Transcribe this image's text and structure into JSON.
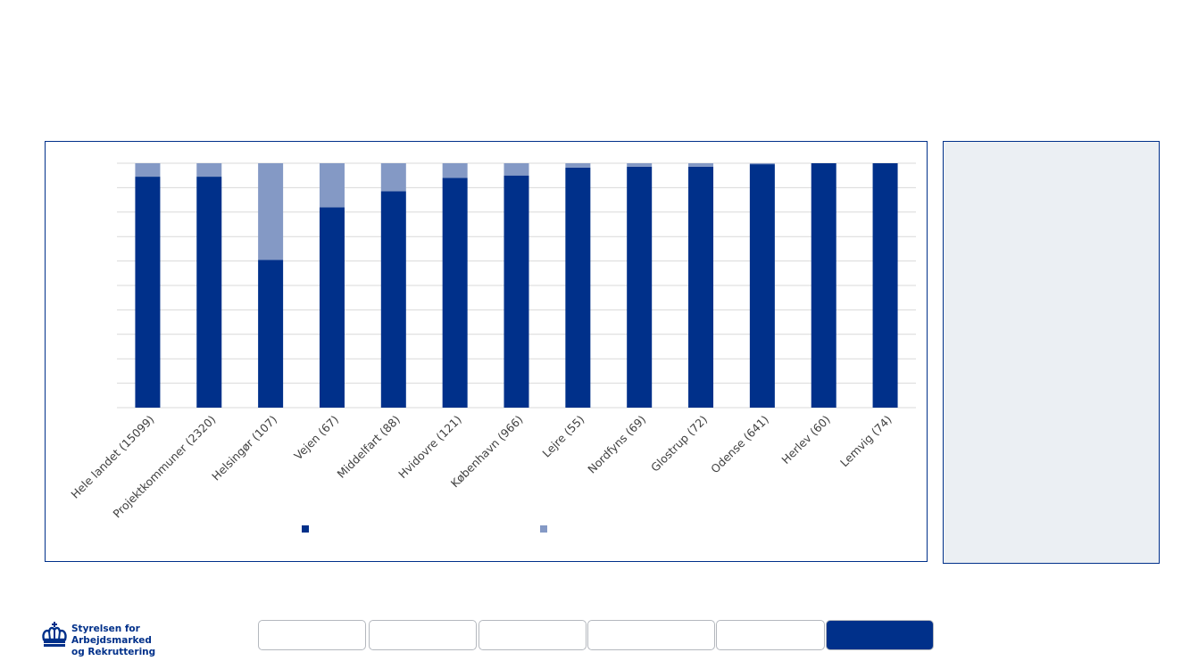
{
  "chart_data": {
    "type": "bar",
    "stacked": true,
    "categories": [
      "Hele landet (15099)",
      "Projektkommuner (2320)",
      "Helsingør (107)",
      "Vejen (67)",
      "Middelfart (88)",
      "Hvidovre (121)",
      "København (966)",
      "Lejre (55)",
      "Nordfyns (69)",
      "Glostrup (72)",
      "Odense (641)",
      "Herlev (60)",
      "Lemvig (74)"
    ],
    "series": [
      {
        "color": "#00308a",
        "values": [
          94.5,
          94.5,
          60.5,
          82,
          88.5,
          94,
          95,
          98.2,
          98.6,
          98.6,
          99.6,
          100,
          100
        ]
      },
      {
        "color": "#8499c5",
        "values": [
          5.5,
          5.5,
          39.5,
          18,
          11.5,
          6,
          5,
          1.8,
          1.4,
          1.4,
          0.4,
          0,
          0
        ]
      }
    ],
    "ylim": [
      0,
      100
    ],
    "grid": true,
    "legend": "bottom"
  },
  "colors": {
    "brand": "#00308a",
    "panel_border": "#00308a",
    "side_panel_bg": "#ebeff3",
    "grid": "#d9d9d9"
  },
  "footer": {
    "logo": {
      "icon": "crown-icon",
      "line1": "Styrelsen for Arbejdsmarked",
      "line2": "og Rekruttering"
    },
    "nav_buttons": [
      {
        "active": false
      },
      {
        "active": false
      },
      {
        "active": false
      },
      {
        "active": false
      },
      {
        "active": false
      },
      {
        "active": true
      }
    ]
  }
}
